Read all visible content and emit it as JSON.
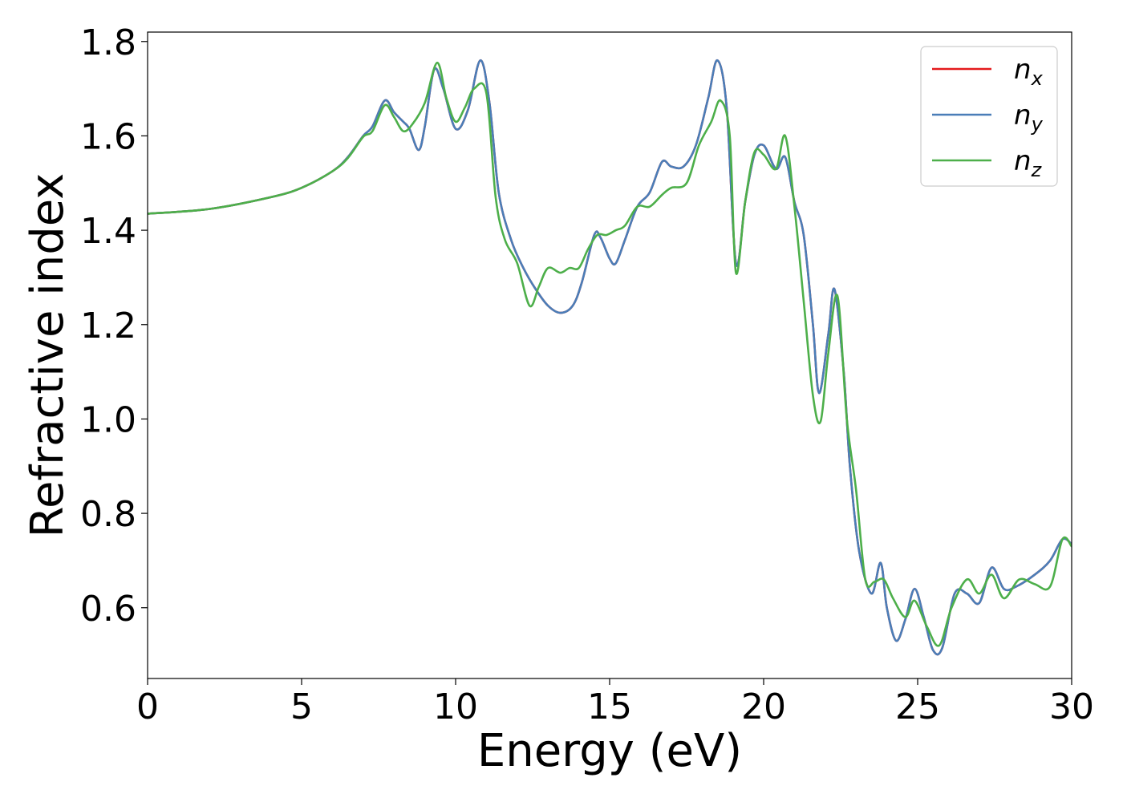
{
  "chart_data": {
    "type": "line",
    "title": "",
    "xlabel": "Energy (eV)",
    "ylabel": "Refractive index",
    "xlim": [
      0,
      30
    ],
    "ylim": [
      0.45,
      1.82
    ],
    "xticks": [
      0,
      5,
      10,
      15,
      20,
      25,
      30
    ],
    "xtick_labels": [
      "0",
      "5",
      "10",
      "15",
      "20",
      "25",
      "30"
    ],
    "yticks": [
      0.6,
      0.8,
      1.0,
      1.2,
      1.4,
      1.6,
      1.8
    ],
    "ytick_labels": [
      "0.6",
      "0.8",
      "1.0",
      "1.2",
      "1.4",
      "1.6",
      "1.8"
    ],
    "grid": false,
    "legend_position": "top-right",
    "series": [
      {
        "name": "n_x",
        "legend_base": "n",
        "legend_sub": "x",
        "color": "#e41a1c",
        "x": [
          0,
          2,
          4,
          5,
          6,
          6.5,
          7,
          7.3,
          7.7,
          8.0,
          8.3,
          8.5,
          8.8,
          9.0,
          9.3,
          9.6,
          10.0,
          10.4,
          10.8,
          11.1,
          11.4,
          11.8,
          12.2,
          12.6,
          13.0,
          13.4,
          13.8,
          14.1,
          14.5,
          14.7,
          15.0,
          15.2,
          15.5,
          15.9,
          16.3,
          16.7,
          17.0,
          17.4,
          17.8,
          18.2,
          18.5,
          18.8,
          19.1,
          19.4,
          19.7,
          20.0,
          20.4,
          20.7,
          21.0,
          21.3,
          21.6,
          21.8,
          22.1,
          22.3,
          22.6,
          22.8,
          23.1,
          23.5,
          23.8,
          24.0,
          24.3,
          24.6,
          24.9,
          25.2,
          25.5,
          25.8,
          26.2,
          26.6,
          27.0,
          27.4,
          27.8,
          28.2,
          28.8,
          29.3,
          29.7,
          30.0
        ],
        "y": [
          1.435,
          1.445,
          1.47,
          1.49,
          1.525,
          1.555,
          1.6,
          1.62,
          1.675,
          1.65,
          1.63,
          1.615,
          1.57,
          1.62,
          1.74,
          1.7,
          1.615,
          1.655,
          1.76,
          1.67,
          1.48,
          1.38,
          1.32,
          1.275,
          1.24,
          1.225,
          1.24,
          1.29,
          1.39,
          1.385,
          1.34,
          1.33,
          1.38,
          1.45,
          1.48,
          1.545,
          1.535,
          1.535,
          1.58,
          1.68,
          1.76,
          1.66,
          1.33,
          1.46,
          1.56,
          1.58,
          1.53,
          1.555,
          1.46,
          1.39,
          1.2,
          1.055,
          1.18,
          1.275,
          1.1,
          0.9,
          0.72,
          0.63,
          0.695,
          0.6,
          0.53,
          0.575,
          0.64,
          0.58,
          0.51,
          0.515,
          0.63,
          0.63,
          0.61,
          0.685,
          0.64,
          0.645,
          0.67,
          0.7,
          0.745,
          0.735
        ]
      },
      {
        "name": "n_y",
        "legend_base": "n",
        "legend_sub": "y",
        "color": "#4a7eb8",
        "x": [
          0,
          2,
          4,
          5,
          6,
          6.5,
          7,
          7.3,
          7.7,
          8.0,
          8.3,
          8.5,
          8.8,
          9.0,
          9.3,
          9.6,
          10.0,
          10.4,
          10.8,
          11.1,
          11.4,
          11.8,
          12.2,
          12.6,
          13.0,
          13.4,
          13.8,
          14.1,
          14.5,
          14.7,
          15.0,
          15.2,
          15.5,
          15.9,
          16.3,
          16.7,
          17.0,
          17.4,
          17.8,
          18.2,
          18.5,
          18.8,
          19.1,
          19.4,
          19.7,
          20.0,
          20.4,
          20.7,
          21.0,
          21.3,
          21.6,
          21.8,
          22.1,
          22.3,
          22.6,
          22.8,
          23.1,
          23.5,
          23.8,
          24.0,
          24.3,
          24.6,
          24.9,
          25.2,
          25.5,
          25.8,
          26.2,
          26.6,
          27.0,
          27.4,
          27.8,
          28.2,
          28.8,
          29.3,
          29.7,
          30.0
        ],
        "y": [
          1.435,
          1.445,
          1.47,
          1.49,
          1.525,
          1.555,
          1.6,
          1.62,
          1.675,
          1.65,
          1.63,
          1.615,
          1.57,
          1.62,
          1.74,
          1.7,
          1.615,
          1.655,
          1.76,
          1.67,
          1.48,
          1.38,
          1.32,
          1.275,
          1.24,
          1.225,
          1.24,
          1.29,
          1.39,
          1.385,
          1.34,
          1.33,
          1.38,
          1.45,
          1.48,
          1.545,
          1.535,
          1.535,
          1.58,
          1.68,
          1.76,
          1.66,
          1.33,
          1.46,
          1.56,
          1.58,
          1.53,
          1.555,
          1.46,
          1.39,
          1.2,
          1.055,
          1.18,
          1.275,
          1.1,
          0.9,
          0.72,
          0.63,
          0.695,
          0.6,
          0.53,
          0.575,
          0.64,
          0.58,
          0.51,
          0.515,
          0.63,
          0.63,
          0.61,
          0.685,
          0.64,
          0.645,
          0.67,
          0.7,
          0.745,
          0.735
        ]
      },
      {
        "name": "n_z",
        "legend_base": "n",
        "legend_sub": "z",
        "color": "#4daf4a",
        "x": [
          0,
          2,
          4,
          5,
          6,
          6.5,
          7,
          7.3,
          7.7,
          8.0,
          8.3,
          8.6,
          9.0,
          9.4,
          9.7,
          10.0,
          10.3,
          10.6,
          11.0,
          11.3,
          11.6,
          12.0,
          12.4,
          12.7,
          13.0,
          13.4,
          13.7,
          14.0,
          14.3,
          14.6,
          14.9,
          15.2,
          15.5,
          15.9,
          16.3,
          16.7,
          17.0,
          17.5,
          17.9,
          18.3,
          18.6,
          18.9,
          19.1,
          19.4,
          19.7,
          20.0,
          20.4,
          20.7,
          21.0,
          21.3,
          21.6,
          21.85,
          22.1,
          22.4,
          22.7,
          23.0,
          23.3,
          23.6,
          23.9,
          24.2,
          24.6,
          24.9,
          25.3,
          25.7,
          26.1,
          26.6,
          27.0,
          27.4,
          27.8,
          28.3,
          28.8,
          29.3,
          29.7,
          30.0
        ],
        "y": [
          1.435,
          1.445,
          1.47,
          1.49,
          1.525,
          1.553,
          1.598,
          1.61,
          1.665,
          1.64,
          1.61,
          1.625,
          1.67,
          1.755,
          1.68,
          1.63,
          1.66,
          1.7,
          1.69,
          1.47,
          1.38,
          1.33,
          1.24,
          1.28,
          1.32,
          1.31,
          1.32,
          1.32,
          1.36,
          1.39,
          1.39,
          1.4,
          1.41,
          1.45,
          1.45,
          1.475,
          1.49,
          1.5,
          1.58,
          1.63,
          1.675,
          1.6,
          1.31,
          1.46,
          1.565,
          1.56,
          1.53,
          1.6,
          1.45,
          1.25,
          1.05,
          0.995,
          1.14,
          1.26,
          1.0,
          0.85,
          0.66,
          0.655,
          0.66,
          0.62,
          0.58,
          0.615,
          0.56,
          0.52,
          0.6,
          0.66,
          0.63,
          0.67,
          0.62,
          0.66,
          0.65,
          0.645,
          0.745,
          0.73
        ]
      }
    ]
  }
}
